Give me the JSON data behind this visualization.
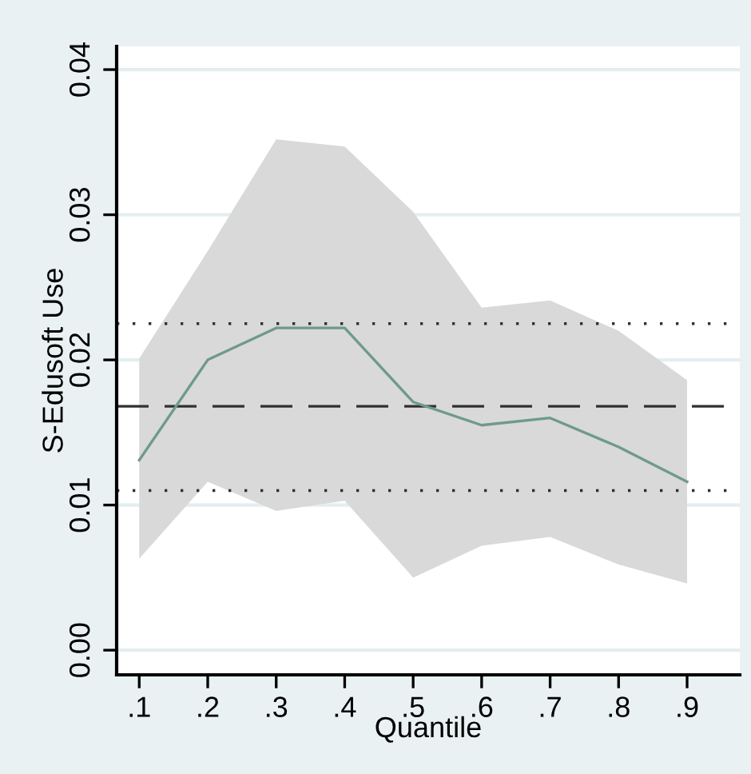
{
  "chart_data": {
    "type": "line",
    "xlabel": "Quantile",
    "ylabel": "S-Edusoft Use",
    "x": [
      0.1,
      0.2,
      0.3,
      0.4,
      0.5,
      0.6,
      0.7,
      0.8,
      0.9
    ],
    "series": [
      {
        "color": "#6e9a8c",
        "values": [
          0.0131,
          0.02,
          0.0222,
          0.0222,
          0.0171,
          0.0155,
          0.016,
          0.014,
          0.0116
        ],
        "lower": [
          0.0063,
          0.0116,
          0.0096,
          0.0103,
          0.005,
          0.0072,
          0.0078,
          0.0059,
          0.0046
        ],
        "upper": [
          0.0201,
          0.0275,
          0.0352,
          0.0347,
          0.0302,
          0.0236,
          0.0241,
          0.022,
          0.0186
        ]
      }
    ],
    "ref_lines": [
      {
        "axis": "y",
        "value": 0.0168,
        "color": "#303030",
        "line_style": "dashed"
      },
      {
        "axis": "y",
        "value": 0.0225,
        "color": "#303030",
        "line_style": "dotted"
      },
      {
        "axis": "y",
        "value": 0.011,
        "color": "#303030",
        "line_style": "dotted"
      }
    ],
    "xlim": [
      0.067,
      0.977
    ],
    "ylim": [
      -0.0017,
      0.0416
    ],
    "xticks": [
      {
        "value": 0.1,
        "label": ".1"
      },
      {
        "value": 0.2,
        "label": ".2"
      },
      {
        "value": 0.3,
        "label": ".3"
      },
      {
        "value": 0.4,
        "label": ".4"
      },
      {
        "value": 0.5,
        "label": ".5"
      },
      {
        "value": 0.6,
        "label": ".6"
      },
      {
        "value": 0.7,
        "label": ".7"
      },
      {
        "value": 0.8,
        "label": ".8"
      },
      {
        "value": 0.9,
        "label": ".9"
      }
    ],
    "yticks": [
      {
        "value": 0,
        "label": "0.00"
      },
      {
        "value": 0.01,
        "label": "0.01"
      },
      {
        "value": 0.02,
        "label": "0.02"
      },
      {
        "value": 0.03,
        "label": "0.03"
      },
      {
        "value": 0.04,
        "label": "0.04"
      }
    ],
    "grid": "y",
    "marker": "none"
  }
}
